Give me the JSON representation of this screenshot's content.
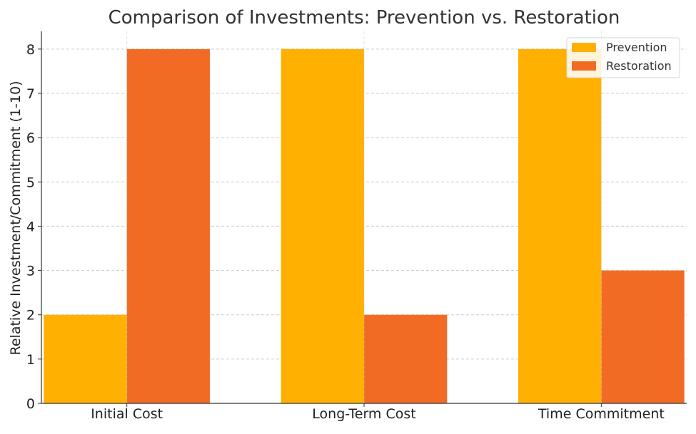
{
  "chart_data": {
    "type": "bar",
    "title": "Comparison of Investments: Prevention vs. Restoration",
    "xlabel": "",
    "ylabel": "Relative Investment/Commitment (1-10)",
    "categories": [
      "Initial Cost",
      "Long-Term Cost",
      "Time Commitment"
    ],
    "series": [
      {
        "name": "Prevention",
        "values": [
          2,
          8,
          8
        ],
        "color": "#FFB000"
      },
      {
        "name": "Restoration",
        "values": [
          8,
          2,
          3
        ],
        "color": "#F26B25"
      }
    ],
    "ylim": [
      0,
      8.4
    ],
    "yticks": [
      0,
      1,
      2,
      3,
      4,
      5,
      6,
      7,
      8
    ],
    "grid": true,
    "legend_position": "top-right"
  }
}
